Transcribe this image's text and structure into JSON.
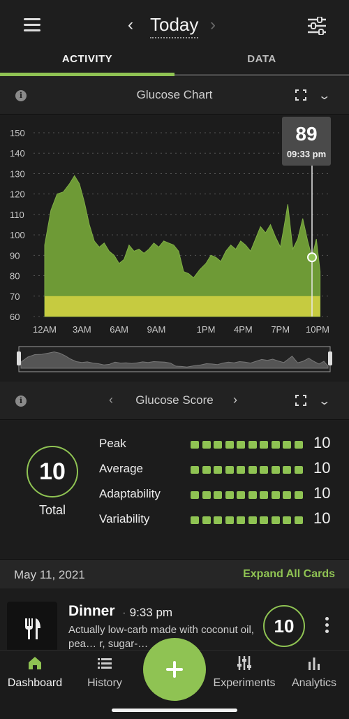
{
  "header": {
    "title": "Today",
    "prev": "‹",
    "next": "›"
  },
  "tabs": [
    {
      "label": "ACTIVITY",
      "active": true
    },
    {
      "label": "DATA",
      "active": false
    }
  ],
  "glucose_chart": {
    "title": "Glucose Chart",
    "tooltip": {
      "value": "89",
      "time": "09:33 pm"
    }
  },
  "chart_data": {
    "type": "area",
    "title": "Glucose Chart",
    "xlabel": "",
    "ylabel": "",
    "ylim": [
      60,
      155
    ],
    "y_ticks": [
      "150",
      "140",
      "130",
      "120",
      "110",
      "100",
      "90",
      "80",
      "70",
      "60"
    ],
    "x_ticks": [
      "12AM",
      "3AM",
      "6AM",
      "9AM",
      "1PM",
      "4PM",
      "7PM",
      "10PM"
    ],
    "target_band": [
      60,
      70
    ],
    "grid": true,
    "x_hours": [
      0,
      0.5,
      1,
      1.5,
      2,
      2.4,
      2.8,
      3.2,
      3.6,
      4,
      4.4,
      4.8,
      5.2,
      5.6,
      6,
      6.4,
      6.8,
      7.2,
      7.6,
      8,
      8.4,
      8.8,
      9.2,
      9.6,
      10,
      10.4,
      10.8,
      11.2,
      11.6,
      12,
      12.5,
      13,
      13.4,
      13.8,
      14.2,
      14.6,
      15,
      15.4,
      15.8,
      16.2,
      16.6,
      17,
      17.4,
      17.8,
      18.2,
      18.6,
      19,
      19.3,
      19.6,
      20,
      20.4,
      20.8,
      21.2,
      21.55,
      21.9,
      22.2
    ],
    "values": [
      95,
      112,
      120,
      121,
      125,
      129,
      125,
      116,
      105,
      97,
      94,
      96,
      92,
      90,
      86,
      88,
      95,
      92,
      93,
      91,
      93,
      96,
      94,
      97,
      96,
      95,
      92,
      82,
      81,
      79,
      83,
      86,
      90,
      89,
      87,
      92,
      95,
      93,
      97,
      95,
      92,
      98,
      104,
      101,
      105,
      99,
      94,
      104,
      115,
      93,
      98,
      108,
      97,
      89,
      98,
      82
    ],
    "series_color": "#6e9a36",
    "band_color": "#d6d342",
    "selected_point": {
      "x_hours": 21.55,
      "value": 89
    }
  },
  "glucose_score": {
    "title": "Glucose Score",
    "total": {
      "value": "10",
      "label": "Total"
    },
    "metrics": [
      {
        "label": "Peak",
        "value": "10",
        "segments": 10
      },
      {
        "label": "Average",
        "value": "10",
        "segments": 10
      },
      {
        "label": "Adaptability",
        "value": "10",
        "segments": 10
      },
      {
        "label": "Variability",
        "value": "10",
        "segments": 10
      }
    ]
  },
  "feed": {
    "date": "May 11, 2021",
    "expand_all": "Expand All Cards"
  },
  "card": {
    "title": "Dinner",
    "time": "9:33 pm",
    "separator": "·",
    "description": "Actually low-carb made with coconut oil, pea… r, sugar-…",
    "score": "10"
  },
  "bottom_nav": [
    {
      "label": "Dashboard",
      "icon": "home-icon",
      "active": true
    },
    {
      "label": "History",
      "icon": "list-icon",
      "active": false
    },
    {
      "label": "Experiments",
      "icon": "sliders-icon",
      "active": false
    },
    {
      "label": "Analytics",
      "icon": "bar-chart-icon",
      "active": false
    }
  ],
  "colors": {
    "accent": "#8fc353",
    "background": "#1e1e1e"
  }
}
